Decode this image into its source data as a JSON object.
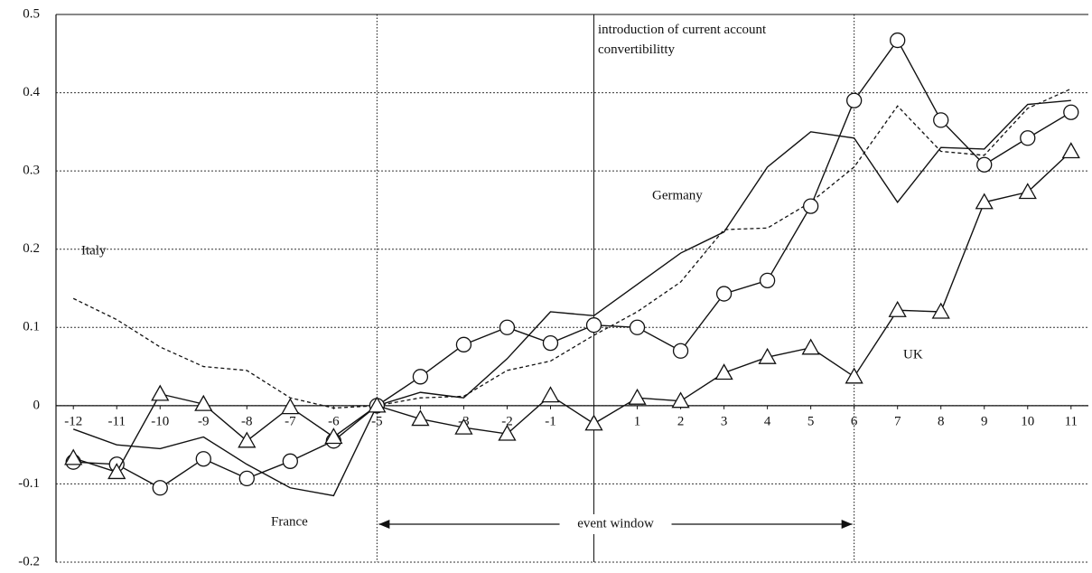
{
  "chart_data": {
    "type": "line",
    "x": [
      -12,
      -11,
      -10,
      -9,
      -8,
      -7,
      -6,
      -5,
      -4,
      -3,
      -2,
      -1,
      0,
      1,
      2,
      3,
      4,
      5,
      6,
      7,
      8,
      9,
      10,
      11
    ],
    "xlim": [
      -12.4,
      11.4
    ],
    "xticks": [
      -12,
      -11,
      -10,
      -9,
      -8,
      -7,
      -6,
      -5,
      -4,
      -3,
      -2,
      -1,
      0,
      1,
      2,
      3,
      4,
      5,
      6,
      7,
      8,
      9,
      10,
      11
    ],
    "ylim": [
      -0.2,
      0.5
    ],
    "yticks": [
      0.5,
      0.4,
      0.3,
      0.2,
      0.1,
      0,
      -0.1,
      -0.2
    ],
    "grid": true,
    "series": [
      {
        "name": "Germany",
        "color": "#111111",
        "style": "solid",
        "marker": "none",
        "values": [
          -0.03,
          -0.05,
          -0.055,
          -0.04,
          -0.075,
          -0.105,
          -0.115,
          0,
          0.017,
          0.01,
          0.06,
          0.12,
          0.115,
          0.155,
          0.195,
          0.222,
          0.305,
          0.35,
          0.342,
          0.26,
          0.33,
          0.328,
          0.385,
          0.39
        ]
      },
      {
        "name": "Italy",
        "color": "#111111",
        "style": "dashed",
        "marker": "none",
        "values": [
          0.137,
          0.11,
          0.075,
          0.05,
          0.045,
          0.01,
          -0.003,
          0,
          0.01,
          0.012,
          0.045,
          0.057,
          0.09,
          0.12,
          0.158,
          0.225,
          0.227,
          0.26,
          0.305,
          0.383,
          0.325,
          0.32,
          0.38,
          0.405
        ]
      },
      {
        "name": "France",
        "color": "#111111",
        "style": "solid",
        "marker": "circle",
        "values": [
          -0.072,
          -0.075,
          -0.105,
          -0.068,
          -0.093,
          -0.071,
          -0.045,
          0,
          0.037,
          0.078,
          0.1,
          0.08,
          0.103,
          0.1,
          0.07,
          0.143,
          0.16,
          0.255,
          0.39,
          0.467,
          0.365,
          0.308,
          0.342,
          0.375
        ]
      },
      {
        "name": "UK",
        "color": "#111111",
        "style": "solid",
        "marker": "triangle",
        "values": [
          -0.067,
          -0.085,
          0.015,
          0.002,
          -0.045,
          -0.002,
          -0.04,
          0,
          -0.017,
          -0.028,
          -0.036,
          0.013,
          -0.023,
          0.01,
          0.006,
          0.042,
          0.062,
          0.074,
          0.037,
          0.122,
          0.12,
          0.26,
          0.273,
          0.325
        ]
      }
    ],
    "vlines": [
      -5,
      0,
      6
    ],
    "annotations": [
      "introduction of current account convertibilitty",
      "event window"
    ]
  }
}
